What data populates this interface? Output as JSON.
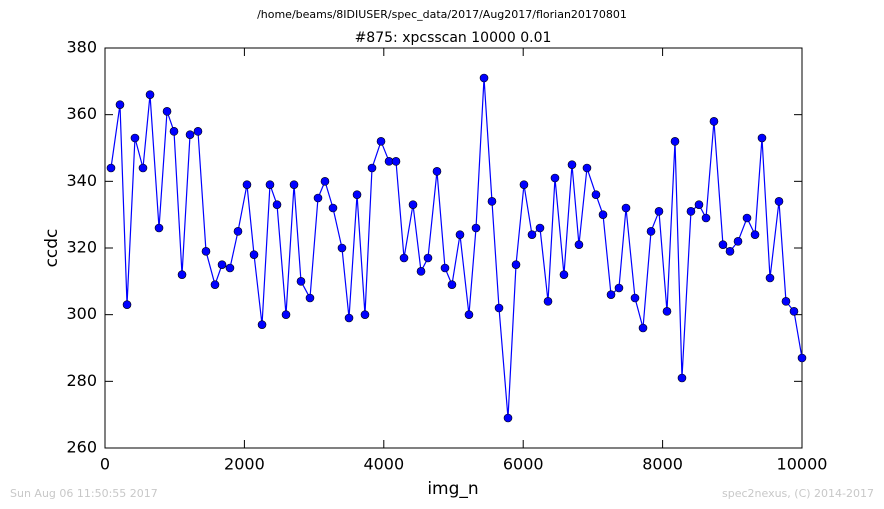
{
  "chart_data": {
    "type": "line",
    "suptitle": "/home/beams/8IDIUSER/spec_data/2017/Aug2017/florian20170801",
    "title": "#875: xpcsscan 10000 0.01",
    "xlabel": "img_n",
    "ylabel": "ccdc",
    "footer_left": "Sun Aug 06 11:50:55 2017",
    "footer_right": "spec2nexus, (C) 2014-2017",
    "xlim": [
      0,
      10000
    ],
    "ylim": [
      260,
      380
    ],
    "xticks": [
      0,
      2000,
      4000,
      6000,
      8000,
      10000
    ],
    "yticks": [
      260,
      280,
      300,
      320,
      340,
      360,
      380
    ],
    "x": [
      86,
      215,
      316,
      430,
      545,
      646,
      775,
      890,
      990,
      1105,
      1220,
      1334,
      1449,
      1578,
      1679,
      1793,
      1908,
      2037,
      2138,
      2253,
      2367,
      2468,
      2597,
      2712,
      2812,
      2941,
      3056,
      3156,
      3271,
      3400,
      3501,
      3616,
      3730,
      3831,
      3960,
      4075,
      4175,
      4290,
      4419,
      4534,
      4634,
      4763,
      4878,
      4978,
      5093,
      5222,
      5323,
      5438,
      5552,
      5653,
      5782,
      5897,
      6011,
      6126,
      6241,
      6356,
      6456,
      6585,
      6700,
      6800,
      6915,
      7044,
      7145,
      7260,
      7374,
      7475,
      7604,
      7719,
      7834,
      7948,
      8063,
      8178,
      8278,
      8407,
      8522,
      8623,
      8737,
      8866,
      8967,
      9082,
      9211,
      9326,
      9426,
      9541,
      9670,
      9770,
      9885,
      10000
    ],
    "series": [
      {
        "color": "#0000ff",
        "values": [
          344,
          363,
          303,
          353,
          344,
          366,
          326,
          361,
          355,
          312,
          354,
          355,
          319,
          309,
          315,
          314,
          325,
          339,
          318,
          297,
          339,
          333,
          300,
          339,
          310,
          305,
          335,
          340,
          332,
          320,
          299,
          336,
          300,
          344,
          352,
          346,
          346,
          317,
          333,
          313,
          317,
          343,
          314,
          309,
          324,
          300,
          326,
          371,
          334,
          302,
          269,
          315,
          339,
          324,
          326,
          304,
          341,
          312,
          345,
          321,
          344,
          336,
          330,
          306,
          308,
          332,
          305,
          296,
          325,
          331,
          301,
          352,
          281,
          331,
          333,
          329,
          358,
          321,
          319,
          322,
          329,
          324,
          353,
          311,
          334,
          304,
          301,
          287
        ]
      }
    ]
  }
}
